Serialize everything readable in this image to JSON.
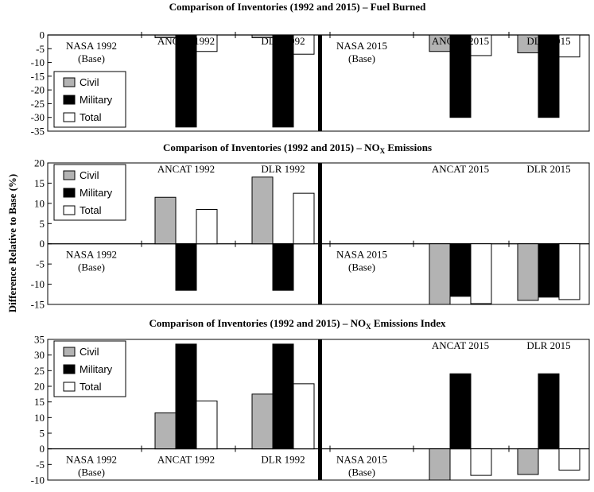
{
  "colors": {
    "civil": "#b3b3b3",
    "military": "#000000",
    "total": "#ffffff",
    "outline": "#000000"
  },
  "ylabel": "Difference Relative to Base (%)",
  "chart_data": [
    {
      "type": "bar",
      "title": "Comparison of Inventories (1992 and 2015) – Fuel Burned",
      "title_parts": [
        "Comparison of Inventories (1992 and 2015) – Fuel Burned"
      ],
      "ylim": [
        -35,
        0
      ],
      "yticks": [
        "0",
        "-5",
        "-10",
        "-15",
        "-20",
        "-25",
        "-30",
        "-35"
      ],
      "legend_position": "left",
      "categories": [
        {
          "name": "NASA 1992",
          "sub": "(Base)",
          "placement": "below"
        },
        {
          "name": "ANCAT 1992",
          "sub": "",
          "placement": "top"
        },
        {
          "name": "DLR 1992",
          "sub": "",
          "placement": "top"
        },
        {
          "name": "NASA 2015",
          "sub": "(Base)",
          "placement": "below"
        },
        {
          "name": "ANCAT 2015",
          "sub": "",
          "placement": "top"
        },
        {
          "name": "DLR  2015",
          "sub": "",
          "placement": "top"
        }
      ],
      "series": [
        {
          "name": "Civil",
          "values": [
            null,
            -1,
            -1,
            null,
            -6,
            -6.5
          ]
        },
        {
          "name": "Military",
          "values": [
            null,
            -33.5,
            -33.5,
            null,
            -30,
            -30
          ]
        },
        {
          "name": "Total",
          "values": [
            null,
            -6,
            -7,
            null,
            -7.5,
            -8
          ]
        }
      ]
    },
    {
      "type": "bar",
      "title": "Comparison of Inventories (1992 and 2015) – NOX Emissions",
      "title_parts": [
        "Comparison of Inventories (1992 and 2015) – NO",
        "X",
        " Emissions"
      ],
      "ylim": [
        -15,
        20
      ],
      "yticks": [
        "20",
        "15",
        "10",
        "5",
        "0",
        "-5",
        "-10",
        "-15"
      ],
      "legend_position": "top-left",
      "categories": [
        {
          "name": "NASA 1992",
          "sub": "(Base)",
          "placement": "below"
        },
        {
          "name": "ANCAT 1992",
          "sub": "",
          "placement": "top"
        },
        {
          "name": "DLR 1992",
          "sub": "",
          "placement": "top"
        },
        {
          "name": "NASA 2015",
          "sub": "(Base)",
          "placement": "below"
        },
        {
          "name": "ANCAT 2015",
          "sub": "",
          "placement": "top"
        },
        {
          "name": "DLR  2015",
          "sub": "",
          "placement": "top"
        }
      ],
      "series": [
        {
          "name": "Civil",
          "values": [
            null,
            11.5,
            16.5,
            null,
            -15,
            -14
          ]
        },
        {
          "name": "Military",
          "values": [
            null,
            -11.5,
            -11.5,
            null,
            -13,
            -13.2
          ]
        },
        {
          "name": "Total",
          "values": [
            null,
            8.5,
            12.5,
            null,
            -14.8,
            -13.8
          ]
        }
      ]
    },
    {
      "type": "bar",
      "title": "Comparison of Inventories (1992 and 2015) – NOX Emissions Index",
      "title_parts": [
        "Comparison of Inventories (1992 and 2015) – NO",
        "X",
        " Emissions Index"
      ],
      "ylim": [
        -10,
        35
      ],
      "yticks": [
        "35",
        "30",
        "25",
        "20",
        "15",
        "10",
        "5",
        "0",
        "-5",
        "-10"
      ],
      "legend_position": "top-left",
      "categories": [
        {
          "name": "NASA 1992",
          "sub": "(Base)",
          "placement": "below"
        },
        {
          "name": "ANCAT 1992",
          "sub": "",
          "placement": "below"
        },
        {
          "name": "DLR 1992",
          "sub": "",
          "placement": "below"
        },
        {
          "name": "NASA 2015",
          "sub": "(Base)",
          "placement": "below"
        },
        {
          "name": "ANCAT 2015",
          "sub": "",
          "placement": "top"
        },
        {
          "name": "DLR  2015",
          "sub": "",
          "placement": "top"
        }
      ],
      "series": [
        {
          "name": "Civil",
          "values": [
            null,
            11.5,
            17.5,
            null,
            -10,
            -8.2
          ]
        },
        {
          "name": "Military",
          "values": [
            null,
            33.5,
            33.5,
            null,
            24,
            24
          ]
        },
        {
          "name": "Total",
          "values": [
            null,
            15.3,
            20.8,
            null,
            -8.5,
            -6.8
          ]
        }
      ]
    }
  ]
}
